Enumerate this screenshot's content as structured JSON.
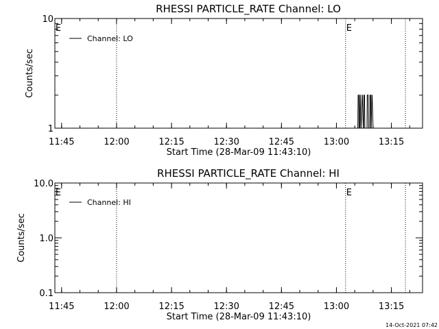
{
  "footer": {
    "timestamp": "14-Oct-2021 07:42"
  },
  "chart_data": [
    {
      "type": "line",
      "title": "RHESSI PARTICLE_RATE Channel: LO",
      "xlabel": "Start Time (28-Mar-09 11:43:10)",
      "ylabel": "Counts/sec",
      "yscale": "log",
      "ylim": [
        1,
        10
      ],
      "xlim": [
        "11:43:10",
        "13:23:30"
      ],
      "x_tick_labels": [
        "11:45",
        "12:00",
        "12:15",
        "12:30",
        "12:45",
        "13:00",
        "13:15"
      ],
      "y_tick_labels": [
        "10",
        "1"
      ],
      "event_lines": [
        "12:00:00",
        "13:02:30",
        "13:18:50"
      ],
      "event_markers": [
        "E",
        "E"
      ],
      "legend": "top-left",
      "series": [
        {
          "name": "Channel: LO",
          "x": [
            "13:05:50",
            "13:05:55",
            "13:06:05",
            "13:06:10",
            "13:06:20",
            "13:06:25",
            "13:06:30",
            "13:06:40",
            "13:06:45",
            "13:07:00",
            "13:07:05",
            "13:07:20",
            "13:07:25",
            "13:07:30",
            "13:07:40",
            "13:07:45",
            "13:08:20",
            "13:08:25",
            "13:08:40",
            "13:08:45",
            "13:09:05",
            "13:09:10",
            "13:09:20",
            "13:09:25",
            "13:09:30",
            "13:09:40",
            "13:09:45",
            "13:10:00"
          ],
          "y": [
            1,
            2,
            2,
            1,
            1,
            2,
            2,
            1,
            1,
            2,
            2,
            1,
            1,
            2,
            2,
            1,
            1,
            2,
            2,
            1,
            1,
            2,
            2,
            1,
            1,
            2,
            2,
            1
          ]
        }
      ]
    },
    {
      "type": "line",
      "title": "RHESSI PARTICLE_RATE Channel: HI",
      "xlabel": "Start Time (28-Mar-09 11:43:10)",
      "ylabel": "Counts/sec",
      "yscale": "log",
      "ylim": [
        0.1,
        10
      ],
      "xlim": [
        "11:43:10",
        "13:23:30"
      ],
      "x_tick_labels": [
        "11:45",
        "12:00",
        "12:15",
        "12:30",
        "12:45",
        "13:00",
        "13:15"
      ],
      "y_tick_labels": [
        "10.0",
        "1.0",
        "0.1"
      ],
      "event_lines": [
        "12:00:00",
        "13:02:30",
        "13:18:50"
      ],
      "event_markers": [
        "E",
        "E"
      ],
      "legend": "top-left",
      "series": [
        {
          "name": "Channel: HI",
          "x": [],
          "y": []
        }
      ]
    }
  ]
}
